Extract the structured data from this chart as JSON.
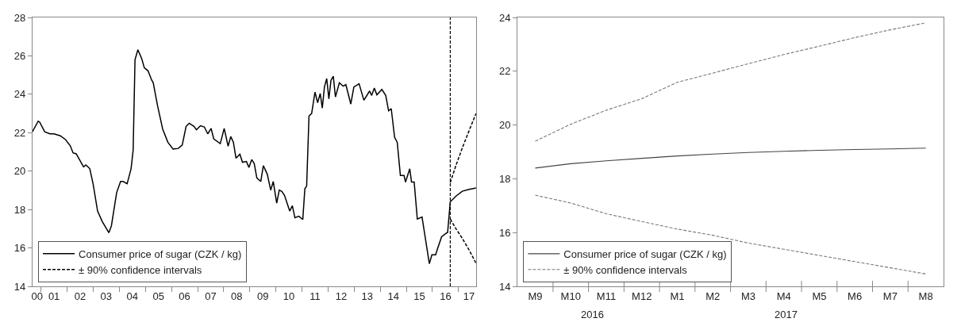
{
  "chart_data": [
    {
      "type": "line",
      "xlim": [
        "2000-09-02",
        "2017-09-02"
      ],
      "ylim": [
        14,
        28
      ],
      "yticks": [
        14,
        16,
        18,
        20,
        22,
        24,
        26,
        28
      ],
      "xticks": [
        {
          "value": "2000-11-07",
          "label": "00"
        },
        {
          "value": "2001-01-01",
          "label": null
        },
        {
          "value": "2001-07-02",
          "label": "01"
        },
        {
          "value": "2002-01-01",
          "label": null
        },
        {
          "value": "2002-07-02",
          "label": "02"
        },
        {
          "value": "2003-01-01",
          "label": null
        },
        {
          "value": "2003-07-02",
          "label": "03"
        },
        {
          "value": "2004-01-01",
          "label": null
        },
        {
          "value": "2004-07-02",
          "label": "04"
        },
        {
          "value": "2005-01-01",
          "label": null
        },
        {
          "value": "2005-07-02",
          "label": "05"
        },
        {
          "value": "2006-01-01",
          "label": null
        },
        {
          "value": "2006-07-02",
          "label": "06"
        },
        {
          "value": "2007-01-01",
          "label": null
        },
        {
          "value": "2007-07-02",
          "label": "07"
        },
        {
          "value": "2008-01-01",
          "label": null
        },
        {
          "value": "2008-07-02",
          "label": "08"
        },
        {
          "value": "2009-01-01",
          "label": null
        },
        {
          "value": "2009-07-02",
          "label": "09"
        },
        {
          "value": "2010-01-01",
          "label": null
        },
        {
          "value": "2010-07-02",
          "label": "10"
        },
        {
          "value": "2011-01-01",
          "label": null
        },
        {
          "value": "2011-07-02",
          "label": "11"
        },
        {
          "value": "2012-01-01",
          "label": null
        },
        {
          "value": "2012-07-02",
          "label": "12"
        },
        {
          "value": "2013-01-01",
          "label": null
        },
        {
          "value": "2013-07-02",
          "label": "13"
        },
        {
          "value": "2014-01-01",
          "label": null
        },
        {
          "value": "2014-07-02",
          "label": "14"
        },
        {
          "value": "2015-01-01",
          "label": null
        },
        {
          "value": "2015-07-02",
          "label": "15"
        },
        {
          "value": "2016-01-01",
          "label": null
        },
        {
          "value": "2016-07-02",
          "label": "16"
        },
        {
          "value": "2017-01-01",
          "label": null
        },
        {
          "value": "2017-05-27",
          "label": "17"
        }
      ],
      "legend": "bottom left",
      "marker": "none",
      "ref_lines": [
        {
          "axis": "x",
          "value": "2016-09-06",
          "color": "#000000",
          "line_style": "dashed"
        }
      ],
      "series": [
        {
          "name": "Consumer price of sugar (CZK / kg)",
          "color": "#000000",
          "line_style": "solid",
          "x": [
            "2000-09-02",
            "2000-11-22",
            "2000-12-13",
            "2001-02-21",
            "2001-05-05",
            "2001-07-02",
            "2001-09-28",
            "2001-12-09",
            "2002-02-14",
            "2002-03-25",
            "2002-05-08",
            "2002-08-19",
            "2002-09-20",
            "2002-11-14",
            "2003-01-01",
            "2003-03-03",
            "2003-05-08",
            "2003-08-08",
            "2003-09-13",
            "2003-11-25",
            "2004-01-19",
            "2004-02-24",
            "2004-04-20",
            "2004-06-14",
            "2004-07-13",
            "2004-08-08",
            "2004-09-17",
            "2004-11-11",
            "2004-12-16",
            "2005-02-06",
            "2005-03-29",
            "2005-04-20",
            "2005-06-18",
            "2005-08-30",
            "2005-11-11",
            "2006-01-23",
            "2006-04-05",
            "2006-05-31",
            "2006-07-24",
            "2006-09-06",
            "2006-11-11",
            "2006-12-16",
            "2007-02-10",
            "2007-04-05",
            "2007-05-23",
            "2007-07-09",
            "2007-08-15",
            "2007-11-14",
            "2008-01-08",
            "2008-03-03",
            "2008-04-09",
            "2008-05-16",
            "2008-06-21",
            "2008-08-15",
            "2008-09-20",
            "2008-11-14",
            "2008-12-20",
            "2009-01-27",
            "2009-03-03",
            "2009-04-09",
            "2009-06-03",
            "2009-07-09",
            "2009-09-02",
            "2009-10-20",
            "2009-11-25",
            "2010-01-12",
            "2010-02-17",
            "2010-03-25",
            "2010-05-01",
            "2010-07-13",
            "2010-08-19",
            "2010-09-24",
            "2010-11-18",
            "2011-01-12",
            "2011-02-10",
            "2011-03-07",
            "2011-04-09",
            "2011-05-16",
            "2011-07-02",
            "2011-08-08",
            "2011-09-13",
            "2011-10-12",
            "2011-11-11",
            "2011-12-13",
            "2012-01-12",
            "2012-02-10",
            "2012-03-14",
            "2012-04-13",
            "2012-06-07",
            "2012-07-31",
            "2012-09-06",
            "2012-11-14",
            "2012-12-27",
            "2013-03-10",
            "2013-05-16",
            "2013-08-04",
            "2013-09-02",
            "2013-10-09",
            "2013-11-14",
            "2014-01-23",
            "2014-03-18",
            "2014-04-27",
            "2014-06-03",
            "2014-07-20",
            "2014-08-26",
            "2014-10-09",
            "2014-11-29",
            "2014-12-20",
            "2015-02-17",
            "2015-03-14",
            "2015-04-20",
            "2015-06-03",
            "2015-08-08",
            "2015-11-18",
            "2015-12-24",
            "2016-02-14",
            "2016-03-14",
            "2016-05-08",
            "2016-07-02",
            "2016-07-31",
            "2016-09-06",
            "2016-11-25",
            "2017-02-21",
            "2017-05-27",
            "2017-09-02"
          ],
          "values": [
            22.05,
            22.6,
            22.55,
            22.05,
            21.94,
            21.94,
            21.84,
            21.64,
            21.32,
            20.95,
            20.9,
            20.22,
            20.32,
            20.13,
            19.3,
            17.92,
            17.37,
            16.79,
            17.16,
            18.88,
            19.46,
            19.46,
            19.34,
            20.13,
            21.1,
            25.8,
            26.32,
            25.84,
            25.38,
            25.22,
            24.74,
            24.6,
            23.43,
            22.19,
            21.5,
            21.15,
            21.18,
            21.36,
            22.33,
            22.49,
            22.33,
            22.15,
            22.36,
            22.3,
            21.94,
            22.22,
            21.68,
            21.43,
            22.22,
            21.3,
            21.8,
            21.5,
            20.67,
            20.88,
            20.46,
            20.5,
            20.19,
            20.6,
            20.4,
            19.64,
            19.46,
            20.28,
            19.84,
            19.01,
            19.46,
            18.33,
            19.01,
            18.94,
            18.74,
            17.92,
            18.2,
            17.57,
            17.65,
            17.48,
            19.08,
            19.22,
            22.87,
            23.0,
            24.11,
            23.56,
            24.04,
            23.28,
            24.38,
            24.82,
            23.76,
            24.72,
            24.94,
            23.86,
            24.6,
            24.42,
            24.5,
            23.49,
            24.38,
            24.55,
            23.69,
            24.17,
            23.94,
            24.32,
            23.97,
            24.25,
            23.94,
            23.14,
            23.25,
            21.76,
            21.5,
            19.77,
            19.77,
            19.43,
            20.12,
            19.43,
            19.43,
            17.5,
            17.61,
            15.18,
            15.64,
            15.64,
            15.98,
            16.58,
            16.74,
            16.81,
            18.4,
            18.7,
            18.95,
            19.05,
            19.12
          ]
        },
        {
          "name": "± 90% confidence intervals",
          "color": "#000000",
          "line_style": "dashed",
          "x": [
            "2016-09-06",
            "2016-11-25",
            "2017-02-21",
            "2017-05-27",
            "2017-09-02"
          ],
          "values": [
            19.4,
            20.3,
            21.2,
            22.1,
            23.0
          ]
        },
        {
          "color": "#000000",
          "line_style": "dashed",
          "x": [
            "2016-09-06",
            "2016-11-25",
            "2017-02-21",
            "2017-05-27",
            "2017-09-02"
          ],
          "values": [
            17.5,
            17.0,
            16.5,
            15.9,
            15.2
          ]
        }
      ]
    },
    {
      "type": "line",
      "categories": [
        "M9",
        "M10",
        "M11",
        "M12",
        "M1",
        "M2",
        "M3",
        "M4",
        "M5",
        "M6",
        "M7",
        "M8"
      ],
      "ylim": [
        14,
        24
      ],
      "yticks": [
        14,
        16,
        18,
        20,
        22,
        24
      ],
      "legend": "bottom left",
      "marker": "none",
      "annotations": [
        "2016",
        "2017"
      ],
      "series": [
        {
          "name": "Consumer price of sugar (CZK / kg)",
          "color": "#444444",
          "line_style": "solid",
          "values": [
            18.4,
            18.56,
            18.67,
            18.76,
            18.85,
            18.92,
            18.98,
            19.02,
            19.06,
            19.09,
            19.11,
            19.14
          ]
        },
        {
          "name": "± 90% confidence intervals",
          "color": "#777777",
          "line_style": "dashed",
          "values": [
            19.4,
            20.03,
            20.55,
            20.98,
            21.59,
            21.93,
            22.28,
            22.62,
            22.93,
            23.25,
            23.54,
            23.8
          ]
        },
        {
          "color": "#777777",
          "line_style": "dashed",
          "values": [
            17.39,
            17.1,
            16.7,
            16.41,
            16.13,
            15.9,
            15.61,
            15.38,
            15.15,
            14.92,
            14.69,
            14.46
          ]
        }
      ]
    }
  ]
}
